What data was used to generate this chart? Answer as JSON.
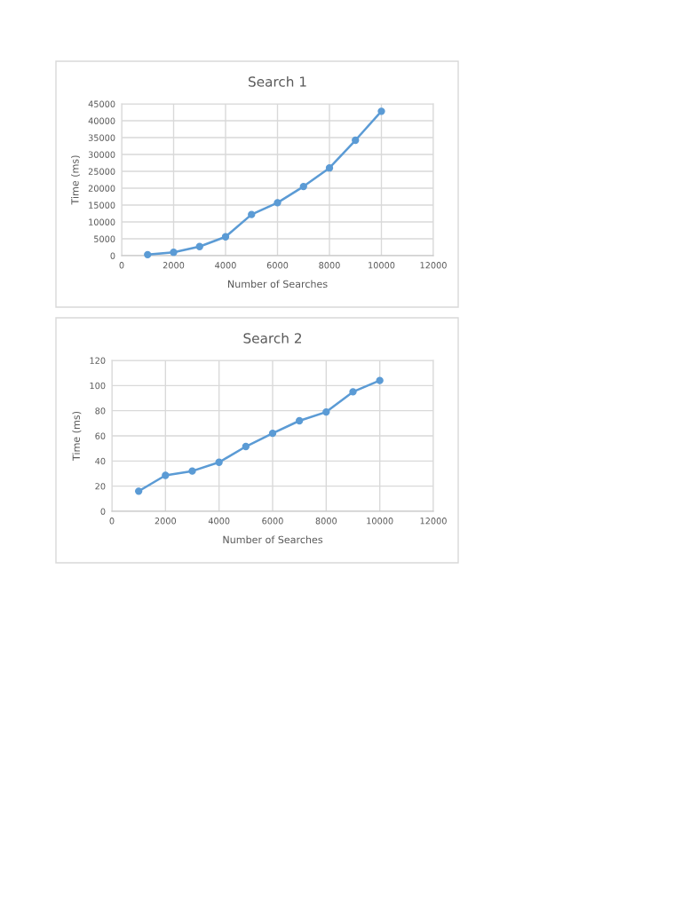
{
  "chart_data": [
    {
      "type": "line",
      "title": "Search 1",
      "xlabel": "Number of Searches",
      "ylabel": "Time (ms)",
      "x": [
        1000,
        2000,
        3000,
        4000,
        5000,
        6000,
        7000,
        8000,
        9000,
        10000
      ],
      "series": [
        {
          "color": "#5b9bd5",
          "values": [
            300,
            1000,
            2700,
            5600,
            12200,
            15700,
            20500,
            26000,
            34200,
            42800
          ]
        }
      ],
      "xlim": [
        0,
        12000
      ],
      "xticks": [
        0,
        2000,
        4000,
        6000,
        8000,
        10000,
        12000
      ],
      "ylim": [
        0,
        45000
      ],
      "yticks": [
        0,
        5000,
        10000,
        15000,
        20000,
        25000,
        30000,
        35000,
        40000,
        45000
      ],
      "grid": true,
      "marker": "circle",
      "line_style": "solid"
    },
    {
      "type": "line",
      "title": "Search 2",
      "xlabel": "Number of Searches",
      "ylabel": "Time (ms)",
      "x": [
        1000,
        2000,
        3000,
        4000,
        5000,
        6000,
        7000,
        8000,
        9000,
        10000
      ],
      "series": [
        {
          "color": "#5b9bd5",
          "values": [
            16,
            28.6,
            32,
            39,
            51.5,
            62,
            72,
            79,
            95,
            104
          ]
        }
      ],
      "xlim": [
        0,
        12000
      ],
      "xticks": [
        0,
        2000,
        4000,
        6000,
        8000,
        10000,
        12000
      ],
      "ylim": [
        0,
        120
      ],
      "yticks": [
        0,
        20,
        40,
        60,
        80,
        100,
        120
      ],
      "grid": true,
      "marker": "circle",
      "line_style": "solid"
    }
  ]
}
